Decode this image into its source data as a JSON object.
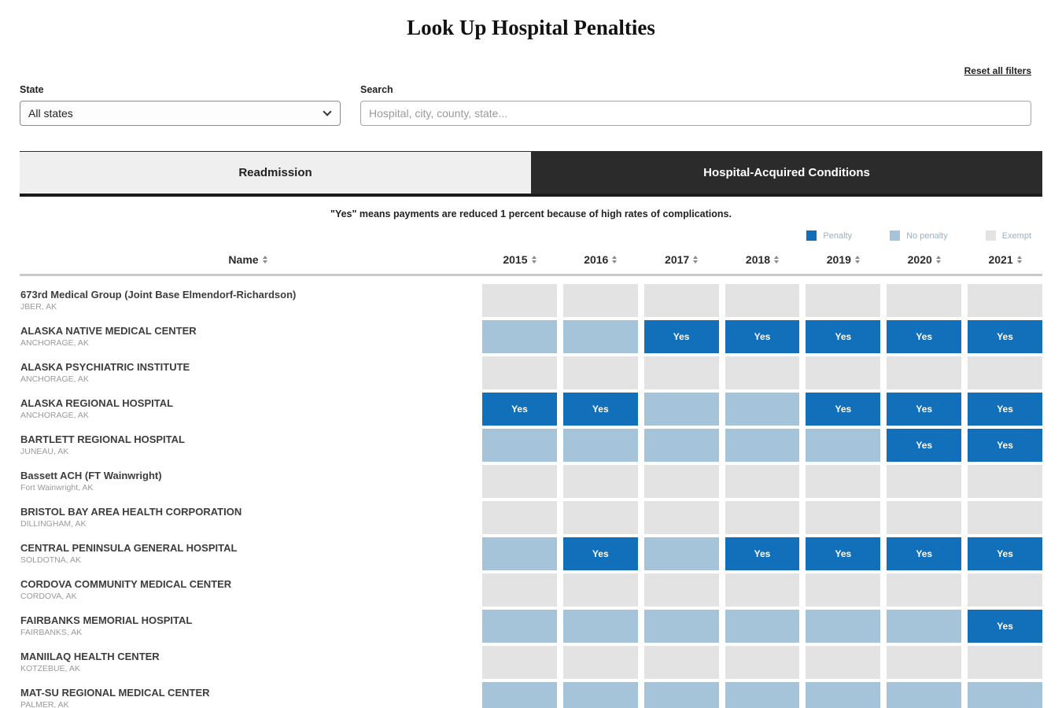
{
  "page": {
    "title": "Look Up Hospital Penalties",
    "reset_link": "Reset all filters"
  },
  "filters": {
    "state_label": "State",
    "state_value": "All states",
    "search_label": "Search",
    "search_placeholder": "Hospital, city, county, state..."
  },
  "tabs": [
    {
      "label": "Readmission",
      "active": false
    },
    {
      "label": "Hospital-Acquired Conditions",
      "active": true
    }
  ],
  "note": "\"Yes\" means payments are reduced 1 percent because of high rates of complications.",
  "legend": [
    {
      "label": "Penalty",
      "key": "penalty"
    },
    {
      "label": "No penalty",
      "key": "no_penalty"
    },
    {
      "label": "Exempt",
      "key": "exempt"
    }
  ],
  "colors": {
    "penalty": "#1170b9",
    "no_penalty": "#a6c4d9",
    "exempt": "#e3e3e3",
    "tab_active_bg": "#2b2b2b",
    "tab_inactive_bg": "#efefef"
  },
  "table": {
    "name_header": "Name",
    "year_headers": [
      "2015",
      "2016",
      "2017",
      "2018",
      "2019",
      "2020",
      "2021"
    ],
    "penalty_label": "Yes",
    "rows": [
      {
        "name": "673rd Medical Group (Joint Base Elmendorf-Richardson)",
        "location": "JBER, AK",
        "values": [
          "exempt",
          "exempt",
          "exempt",
          "exempt",
          "exempt",
          "exempt",
          "exempt"
        ]
      },
      {
        "name": "ALASKA NATIVE MEDICAL CENTER",
        "location": "ANCHORAGE, AK",
        "values": [
          "no_penalty",
          "no_penalty",
          "penalty",
          "penalty",
          "penalty",
          "penalty",
          "penalty"
        ]
      },
      {
        "name": "ALASKA PSYCHIATRIC INSTITUTE",
        "location": "ANCHORAGE, AK",
        "values": [
          "exempt",
          "exempt",
          "exempt",
          "exempt",
          "exempt",
          "exempt",
          "exempt"
        ]
      },
      {
        "name": "ALASKA REGIONAL HOSPITAL",
        "location": "ANCHORAGE, AK",
        "values": [
          "penalty",
          "penalty",
          "no_penalty",
          "no_penalty",
          "penalty",
          "penalty",
          "penalty"
        ]
      },
      {
        "name": "BARTLETT REGIONAL HOSPITAL",
        "location": "JUNEAU, AK",
        "values": [
          "no_penalty",
          "no_penalty",
          "no_penalty",
          "no_penalty",
          "no_penalty",
          "penalty",
          "penalty"
        ]
      },
      {
        "name": "Bassett ACH (FT Wainwright)",
        "location": "Fort Wainwright, AK",
        "values": [
          "exempt",
          "exempt",
          "exempt",
          "exempt",
          "exempt",
          "exempt",
          "exempt"
        ]
      },
      {
        "name": "BRISTOL BAY AREA HEALTH CORPORATION",
        "location": "DILLINGHAM, AK",
        "values": [
          "exempt",
          "exempt",
          "exempt",
          "exempt",
          "exempt",
          "exempt",
          "exempt"
        ]
      },
      {
        "name": "CENTRAL PENINSULA GENERAL HOSPITAL",
        "location": "SOLDOTNA, AK",
        "values": [
          "no_penalty",
          "penalty",
          "no_penalty",
          "penalty",
          "penalty",
          "penalty",
          "penalty"
        ]
      },
      {
        "name": "CORDOVA COMMUNITY MEDICAL CENTER",
        "location": "CORDOVA, AK",
        "values": [
          "exempt",
          "exempt",
          "exempt",
          "exempt",
          "exempt",
          "exempt",
          "exempt"
        ]
      },
      {
        "name": "FAIRBANKS MEMORIAL HOSPITAL",
        "location": "FAIRBANKS, AK",
        "values": [
          "no_penalty",
          "no_penalty",
          "no_penalty",
          "no_penalty",
          "no_penalty",
          "no_penalty",
          "penalty"
        ]
      },
      {
        "name": "MANIILAQ HEALTH CENTER",
        "location": "KOTZEBUE, AK",
        "values": [
          "exempt",
          "exempt",
          "exempt",
          "exempt",
          "exempt",
          "exempt",
          "exempt"
        ]
      },
      {
        "name": "MAT-SU REGIONAL MEDICAL CENTER",
        "location": "PALMER, AK",
        "values": [
          "no_penalty",
          "no_penalty",
          "no_penalty",
          "no_penalty",
          "no_penalty",
          "no_penalty",
          "no_penalty"
        ]
      }
    ]
  }
}
